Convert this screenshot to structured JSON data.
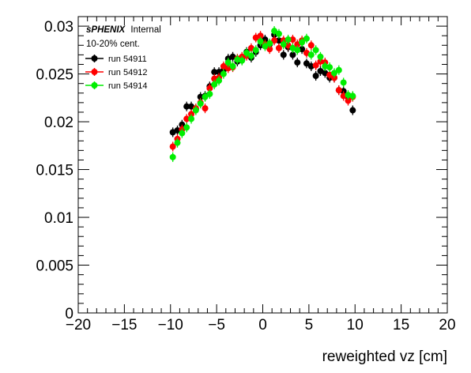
{
  "chart_data": {
    "type": "scatter",
    "title": "",
    "xlabel": "reweighted vz [cm]",
    "ylabel": "",
    "xlim": [
      -20,
      20
    ],
    "ylim": [
      0,
      0.031
    ],
    "x_ticks": [
      -20,
      -15,
      -10,
      -5,
      0,
      5,
      10,
      15,
      20
    ],
    "x_tick_labels": [
      "−20",
      "−15",
      "−10",
      "−5",
      "0",
      "5",
      "10",
      "15",
      "20"
    ],
    "y_ticks": [
      0,
      0.005,
      0.01,
      0.015,
      0.02,
      0.025,
      0.03
    ],
    "y_tick_labels": [
      "0",
      "0.005",
      "0.01",
      "0.015",
      "0.02",
      "0.025",
      "0.03"
    ],
    "grid": false,
    "legend_position": "top-left",
    "annotations": {
      "experiment": "sPHENIX",
      "status": "Internal",
      "centrality": "10-20% cent."
    },
    "x": [
      -9.75,
      -9.25,
      -8.75,
      -8.25,
      -7.75,
      -7.25,
      -6.75,
      -6.25,
      -5.75,
      -5.25,
      -4.75,
      -4.25,
      -3.75,
      -3.25,
      -2.75,
      -2.25,
      -1.75,
      -1.25,
      -0.75,
      -0.25,
      0.25,
      0.75,
      1.25,
      1.75,
      2.25,
      2.75,
      3.25,
      3.75,
      4.25,
      4.75,
      5.25,
      5.75,
      6.25,
      6.75,
      7.25,
      7.75,
      8.25,
      8.75,
      9.25,
      9.75
    ],
    "series": [
      {
        "name": "run 54911",
        "color": "#000000",
        "values": [
          0.0189,
          0.0191,
          0.0197,
          0.0216,
          0.0216,
          0.0213,
          0.0226,
          0.0227,
          0.0237,
          0.0252,
          0.0252,
          0.0254,
          0.0266,
          0.0268,
          0.0263,
          0.0265,
          0.0273,
          0.0267,
          0.0273,
          0.028,
          0.0286,
          0.0281,
          0.0291,
          0.0285,
          0.027,
          0.0278,
          0.027,
          0.0262,
          0.0276,
          0.0261,
          0.0258,
          0.0248,
          0.0253,
          0.0251,
          0.0246,
          0.0246,
          0.0233,
          0.0232,
          0.0226,
          0.0212
        ],
        "errors": [
          0.0005,
          0.0005,
          0.0005,
          0.0005,
          0.0005,
          0.0005,
          0.0005,
          0.0005,
          0.0005,
          0.0005,
          0.0005,
          0.0005,
          0.0005,
          0.0005,
          0.0005,
          0.0005,
          0.0005,
          0.0005,
          0.0005,
          0.0005,
          0.0005,
          0.0005,
          0.0005,
          0.0005,
          0.0005,
          0.0005,
          0.0005,
          0.0005,
          0.0005,
          0.0005,
          0.0005,
          0.0005,
          0.0005,
          0.0005,
          0.0005,
          0.0005,
          0.0005,
          0.0005,
          0.0005,
          0.0005
        ]
      },
      {
        "name": "run 54912",
        "color": "#ff0000",
        "values": [
          0.0174,
          0.0182,
          0.0192,
          0.0203,
          0.0208,
          0.0214,
          0.022,
          0.0214,
          0.0235,
          0.0245,
          0.0246,
          0.0258,
          0.0256,
          0.0257,
          0.0266,
          0.0268,
          0.0269,
          0.0277,
          0.0288,
          0.029,
          0.0281,
          0.0276,
          0.0285,
          0.0277,
          0.0285,
          0.028,
          0.0286,
          0.0281,
          0.0285,
          0.0272,
          0.028,
          0.0259,
          0.0263,
          0.0262,
          0.0249,
          0.0246,
          0.0233,
          0.0227,
          0.0222,
          0.0226
        ],
        "errors": [
          0.0005,
          0.0005,
          0.0005,
          0.0005,
          0.0005,
          0.0005,
          0.0005,
          0.0005,
          0.0005,
          0.0005,
          0.0005,
          0.0005,
          0.0005,
          0.0005,
          0.0005,
          0.0005,
          0.0005,
          0.0005,
          0.0005,
          0.0005,
          0.0005,
          0.0005,
          0.0005,
          0.0005,
          0.0005,
          0.0005,
          0.0005,
          0.0005,
          0.0005,
          0.0005,
          0.0005,
          0.0005,
          0.0005,
          0.0005,
          0.0005,
          0.0005,
          0.0005,
          0.0005,
          0.0005,
          0.0005
        ]
      },
      {
        "name": "run 54914",
        "color": "#00ee00",
        "values": [
          0.0163,
          0.0178,
          0.0188,
          0.0194,
          0.0203,
          0.0212,
          0.0219,
          0.0226,
          0.0229,
          0.0239,
          0.0243,
          0.025,
          0.0262,
          0.0258,
          0.0265,
          0.0264,
          0.0272,
          0.0269,
          0.0275,
          0.0284,
          0.0279,
          0.0282,
          0.0295,
          0.0292,
          0.0281,
          0.0286,
          0.0277,
          0.0275,
          0.0283,
          0.0287,
          0.027,
          0.0275,
          0.0268,
          0.0258,
          0.0257,
          0.0251,
          0.0254,
          0.0241,
          0.0228,
          0.0227
        ],
        "errors": [
          0.0005,
          0.0005,
          0.0005,
          0.0005,
          0.0005,
          0.0005,
          0.0005,
          0.0005,
          0.0005,
          0.0005,
          0.0005,
          0.0005,
          0.0005,
          0.0005,
          0.0005,
          0.0005,
          0.0005,
          0.0005,
          0.0005,
          0.0005,
          0.0005,
          0.0005,
          0.0005,
          0.0005,
          0.0005,
          0.0005,
          0.0005,
          0.0005,
          0.0005,
          0.0005,
          0.0005,
          0.0005,
          0.0005,
          0.0005,
          0.0005,
          0.0005,
          0.0005,
          0.0005,
          0.0005,
          0.0005
        ]
      }
    ]
  }
}
